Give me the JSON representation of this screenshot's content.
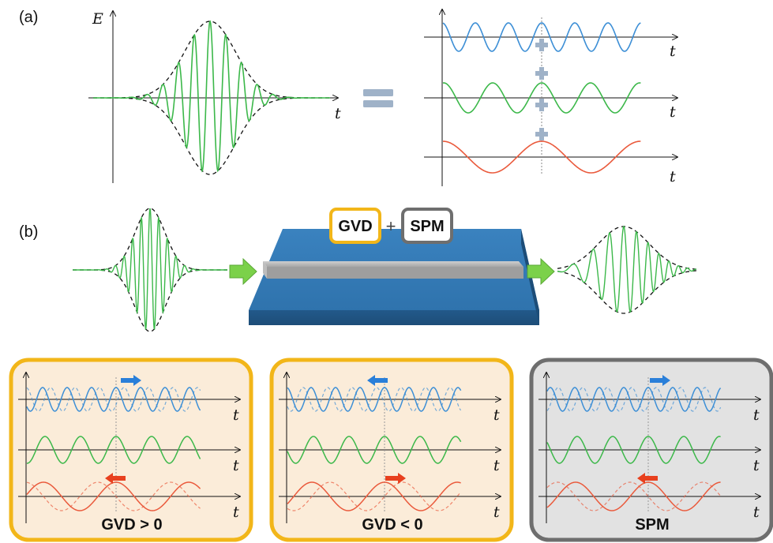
{
  "panel_a": {
    "label": "(a)",
    "y_axis_label": "E",
    "x_axis_label": "t",
    "component_axis_labels": [
      "t",
      "t",
      "t"
    ],
    "component_colors": [
      "#3d8fd6",
      "#3cb84a",
      "#ea5a3c"
    ]
  },
  "panel_b": {
    "label": "(b)",
    "gvd_box_label": "GVD",
    "spm_box_label": "SPM",
    "plus_sign": "+"
  },
  "effects": [
    {
      "caption": "GVD > 0",
      "axis_labels": [
        "t",
        "t",
        "t"
      ],
      "border_color": "#f2b619",
      "background": "#fbecd9"
    },
    {
      "caption": "GVD < 0",
      "axis_labels": [
        "t",
        "t",
        "t"
      ],
      "border_color": "#f2b619",
      "background": "#fbecd9"
    },
    {
      "caption": "SPM",
      "axis_labels": [
        "t",
        "t",
        "t"
      ],
      "border_color": "#6e6e6e",
      "background": "#e2e2e2"
    }
  ],
  "colors": {
    "pulse": "#3cb84a",
    "envelope": "#111111",
    "equals_sign": "#9fb2c8",
    "plus_signs": "#9fb2c8",
    "arrow_green": "#7bd14a",
    "blue_shift": "#2a7fd9",
    "red_shift": "#e8401e",
    "chip": "#2e6fa6",
    "waveguide": "#a9a9a9"
  }
}
